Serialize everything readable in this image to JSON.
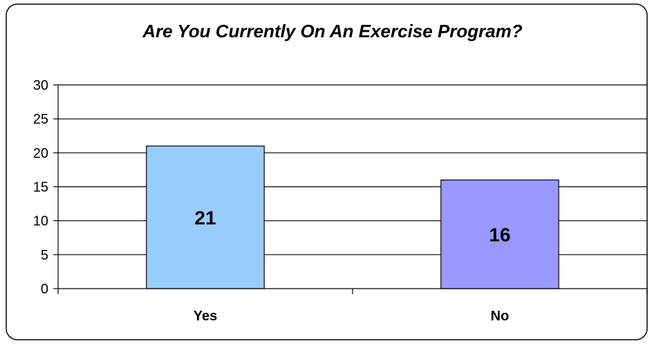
{
  "chart_data": {
    "type": "bar",
    "title": "Are You Currently On An Exercise Program?",
    "categories": [
      "Yes",
      "No"
    ],
    "values": [
      21,
      16
    ],
    "colors": [
      "#99ccff",
      "#9999ff"
    ],
    "ylim": [
      0,
      30
    ],
    "yticks": [
      0,
      5,
      10,
      15,
      20,
      25,
      30
    ],
    "grid": true,
    "legend": "none",
    "data_labels": true
  }
}
